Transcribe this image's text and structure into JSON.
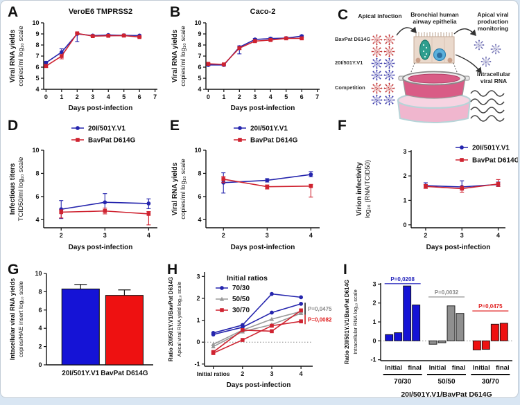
{
  "colors": {
    "blue": "#2525ad",
    "red": "#cf2330",
    "gray": "#9a9a9a",
    "bar_blue": "#1513d6",
    "bar_red": "#ee1111",
    "gray_bar": "#8f8f8f",
    "p_blue": "#2222bb",
    "p_gray": "#8a8a8a",
    "p_red": "#e02020",
    "axis": "#111111"
  },
  "letters": {
    "a": "A",
    "b": "B",
    "c": "C",
    "d": "D",
    "e": "E",
    "f": "F",
    "g": "G",
    "h": "H",
    "i": "I"
  },
  "panel_c": {
    "header_left": "Apical infection",
    "header_center": "Bronchial human airway epithelia",
    "header_right": "Apical viral production monitoring",
    "row_label_1": "BavPat D614G",
    "row_label_2": "20I/501Y.V1",
    "row_label_3": "Competition",
    "right_label": "Intracellular viral RNA"
  },
  "chart_data": [
    {
      "id": "A",
      "type": "line",
      "title": "VeroE6 TMPRSS2",
      "xlabel": "Days post-infection",
      "ylabel": "Viral RNA yields",
      "ylabel2": "copies/ml log₁₀ scale",
      "xlim": [
        -0.15,
        7.15
      ],
      "xticks": [
        0,
        1,
        2,
        3,
        4,
        5,
        6,
        7
      ],
      "ylim": [
        4,
        10
      ],
      "yticks": [
        4,
        5,
        6,
        7,
        8,
        9,
        10
      ],
      "x": [
        0,
        1,
        2,
        3,
        4,
        5,
        6
      ],
      "series": [
        {
          "name": "20I/501Y.V1",
          "color": "blue",
          "marker": "circle",
          "values": [
            6.4,
            7.35,
            9.0,
            8.85,
            8.9,
            8.87,
            8.85
          ],
          "err_lo": [
            0.25,
            0.1,
            0.7,
            0.05,
            0.06,
            0.12,
            0.1
          ],
          "err_hi": [
            0.12,
            0.3,
            0.06,
            0.05,
            0.06,
            0.06,
            0.05
          ]
        },
        {
          "name": "BavPat D614G",
          "color": "red",
          "marker": "square",
          "values": [
            6.1,
            7.0,
            9.05,
            8.8,
            8.83,
            8.85,
            8.72
          ],
          "err_lo": [
            0.12,
            0.25,
            0.05,
            0.05,
            0.05,
            0.05,
            0.06
          ],
          "err_hi": [
            0.1,
            0.12,
            0.1,
            0.05,
            0.05,
            0.05,
            0.05
          ]
        }
      ]
    },
    {
      "id": "B",
      "type": "line",
      "title": "Caco-2",
      "xlabel": "Days post-infection",
      "ylabel": "Viral RNA yields",
      "ylabel2": "copies/ml log₁₀ scale",
      "xlim": [
        -0.15,
        7.15
      ],
      "xticks": [
        0,
        1,
        2,
        3,
        4,
        5,
        6,
        7
      ],
      "ylim": [
        4,
        10
      ],
      "yticks": [
        4,
        5,
        6,
        7,
        8,
        9,
        10
      ],
      "x": [
        0,
        1,
        2,
        3,
        4,
        5,
        6
      ],
      "series": [
        {
          "name": "20I/501Y.V1",
          "color": "blue",
          "marker": "circle",
          "values": [
            6.2,
            6.2,
            7.8,
            8.5,
            8.58,
            8.62,
            8.8
          ],
          "err_lo": [
            0.08,
            0.1,
            0.6,
            0.08,
            0.08,
            0.06,
            0.08
          ],
          "err_hi": [
            0.08,
            0.08,
            0.12,
            0.08,
            0.1,
            0.06,
            0.08
          ]
        },
        {
          "name": "BavPat D614G",
          "color": "red",
          "marker": "square",
          "values": [
            6.3,
            6.25,
            7.72,
            8.35,
            8.45,
            8.6,
            8.6
          ],
          "err_lo": [
            0.08,
            0.08,
            0.1,
            0.06,
            0.06,
            0.06,
            0.06
          ],
          "err_hi": [
            0.08,
            0.08,
            0.08,
            0.06,
            0.06,
            0.06,
            0.06
          ]
        }
      ]
    },
    {
      "id": "D",
      "type": "line",
      "xlabel": "Days post-infection",
      "ylabel": "Infectious titers",
      "ylabel2": "TCID50/ml log₁₀ scale",
      "xlim": [
        1.6,
        4.2
      ],
      "xticks": [
        2,
        3,
        4
      ],
      "ylim": [
        3.3,
        10
      ],
      "yticks": [
        4,
        6,
        8,
        10
      ],
      "x": [
        2,
        3,
        4
      ],
      "legend": {
        "type": "above"
      },
      "series": [
        {
          "name": "20I/501Y.V1",
          "color": "blue",
          "marker": "circle",
          "values": [
            4.9,
            5.5,
            5.4
          ],
          "err_lo": [
            0.8,
            0.75,
            0.45
          ],
          "err_hi": [
            0.75,
            0.75,
            0.4
          ]
        },
        {
          "name": "BavPat D614G",
          "color": "red",
          "marker": "square",
          "values": [
            4.65,
            4.75,
            4.5
          ],
          "err_lo": [
            0.5,
            0.25,
            0.95
          ],
          "err_hi": [
            0.2,
            0.25,
            0.2
          ]
        }
      ]
    },
    {
      "id": "E",
      "type": "line",
      "xlabel": "Days post-infection",
      "ylabel": "Viral RNA yields",
      "ylabel2": "copies/ml log₁₀ scale",
      "xlim": [
        1.6,
        4.2
      ],
      "xticks": [
        2,
        3,
        4
      ],
      "ylim": [
        3.3,
        10
      ],
      "yticks": [
        4,
        6,
        8,
        10
      ],
      "x": [
        2,
        3,
        4
      ],
      "legend": {
        "type": "above"
      },
      "series": [
        {
          "name": "20I/501Y.V1",
          "color": "blue",
          "marker": "circle",
          "values": [
            7.2,
            7.4,
            7.9
          ],
          "err_lo": [
            0.9,
            0.15,
            0.2
          ],
          "err_hi": [
            0.85,
            0.15,
            0.25
          ]
        },
        {
          "name": "BavPat D614G",
          "color": "red",
          "marker": "square",
          "values": [
            7.5,
            6.85,
            6.9
          ],
          "err_lo": [
            0.3,
            0.2,
            0.95
          ],
          "err_hi": [
            0.25,
            0.15,
            0.15
          ]
        }
      ]
    },
    {
      "id": "F",
      "type": "line",
      "xlabel": "Days post-infection",
      "ylabel": "Virion infectivity",
      "ylabel2": "log₁₀ (RNA/TCID50)",
      "xlim": [
        1.6,
        4.2
      ],
      "xticks": [
        2,
        3,
        4
      ],
      "ylim": [
        -0.12,
        3.05
      ],
      "yticks": [
        0,
        1,
        2,
        3
      ],
      "x": [
        2,
        3,
        4
      ],
      "legend": {
        "type": "inside"
      },
      "series": [
        {
          "name": "20I/501Y.V1",
          "color": "blue",
          "marker": "circle",
          "values": [
            1.6,
            1.55,
            1.65
          ],
          "err_lo": [
            0.1,
            0.12,
            0.08
          ],
          "err_hi": [
            0.12,
            0.25,
            0.1
          ]
        },
        {
          "name": "BavPat D614G",
          "color": "red",
          "marker": "square",
          "values": [
            1.57,
            1.48,
            1.67
          ],
          "err_lo": [
            0.08,
            0.15,
            0.1
          ],
          "err_hi": [
            0.08,
            0.1,
            0.18
          ]
        }
      ]
    },
    {
      "id": "G",
      "type": "bar",
      "categories": [
        "20I/501Y.V1",
        "BavPat D614G"
      ],
      "values": [
        8.3,
        7.6
      ],
      "err_hi": [
        0.5,
        0.6
      ],
      "bar_colors": [
        "bar_blue",
        "bar_red"
      ],
      "ylabel": "Intacellular viral RNA yields",
      "ylabel2": "copies/HAE insert log₁₀ scale",
      "ylim": [
        0,
        10
      ],
      "yticks": [
        0,
        2,
        4,
        6,
        8,
        10
      ]
    },
    {
      "id": "H",
      "type": "line",
      "xlabel": "Days post-infection",
      "ylabel": "Ratio 20I/501Y.V1/BavPat D614G",
      "ylabel2": "Apical viral RNA yield log₁₀ scale",
      "xlim": [
        -0.3,
        3.4
      ],
      "xticks": [
        0,
        1,
        2,
        3
      ],
      "xtick_labels": [
        "Initial ratios",
        "2",
        "3",
        "4"
      ],
      "ylim": [
        -1.1,
        3.2
      ],
      "yticks": [
        -1,
        0,
        1,
        2,
        3
      ],
      "zero_line": true,
      "x": [
        0,
        1,
        2,
        3
      ],
      "legend": {
        "type": "ratios",
        "title": "Initial ratios",
        "entries": [
          {
            "label": "70/30",
            "color": "blue",
            "marker": "circle"
          },
          {
            "label": "50/50",
            "color": "gray",
            "marker": "triangle"
          },
          {
            "label": "30/70",
            "color": "red",
            "marker": "square"
          }
        ]
      },
      "series": [
        {
          "name": "70/30",
          "color": "blue",
          "marker": "circle",
          "values": [
            0.42,
            0.78,
            2.2,
            2.05
          ]
        },
        {
          "name": "70/30",
          "color": "blue",
          "marker": "circle",
          "values": [
            0.35,
            0.68,
            1.35,
            1.75
          ]
        },
        {
          "name": "50/50",
          "color": "gray",
          "marker": "triangle",
          "values": [
            -0.1,
            0.55,
            1.05,
            1.4
          ]
        },
        {
          "name": "50/50",
          "color": "gray",
          "marker": "triangle",
          "values": [
            -0.2,
            0.48,
            0.8,
            1.32
          ]
        },
        {
          "name": "30/70",
          "color": "red",
          "marker": "square",
          "values": [
            -0.45,
            0.55,
            0.5,
            1.45
          ]
        },
        {
          "name": "30/70",
          "color": "red",
          "marker": "square",
          "values": [
            -0.5,
            0.1,
            0.75,
            0.95
          ]
        }
      ],
      "annotations": [
        {
          "text": "P=0,0475",
          "color": "p_gray",
          "bar_color": "#222222",
          "x": 3.14,
          "bar": [
            1.25,
            1.8
          ]
        },
        {
          "text": "P=0,0082",
          "color": "p_red",
          "bar_color": "#cc2020",
          "x": 3.14,
          "bar": [
            0.82,
            1.25
          ]
        }
      ]
    },
    {
      "id": "I",
      "type": "grouped_bar",
      "xlabel": "20I/501Y.V1/BavPat D614G",
      "ylabel": "Ratio 20I/501Y.V1/BavPat D614G",
      "ylabel2": "Intracellular RNA log₁₀ scale",
      "ylim": [
        -1.05,
        3.05
      ],
      "yticks": [
        -1,
        0,
        1,
        2,
        3
      ],
      "zero_line": true,
      "sub_labels": [
        "Initial",
        "final"
      ],
      "groups": [
        {
          "label": "70/30",
          "color": "bar_blue",
          "pvalue": "P=0,0208",
          "p_color": "p_blue",
          "p_y": 3.02,
          "values": [
            0.33,
            0.43,
            2.9,
            1.9
          ]
        },
        {
          "label": "50/50",
          "color": "gray_bar",
          "pvalue": "P=0,0032",
          "p_color": "p_gray",
          "p_y": 2.32,
          "values": [
            -0.18,
            -0.1,
            1.85,
            1.45
          ]
        },
        {
          "label": "30/70",
          "color": "bar_red",
          "pvalue": "P=0,0475",
          "p_color": "p_red",
          "p_y": 1.58,
          "values": [
            -0.48,
            -0.45,
            0.88,
            0.93
          ]
        }
      ]
    }
  ]
}
